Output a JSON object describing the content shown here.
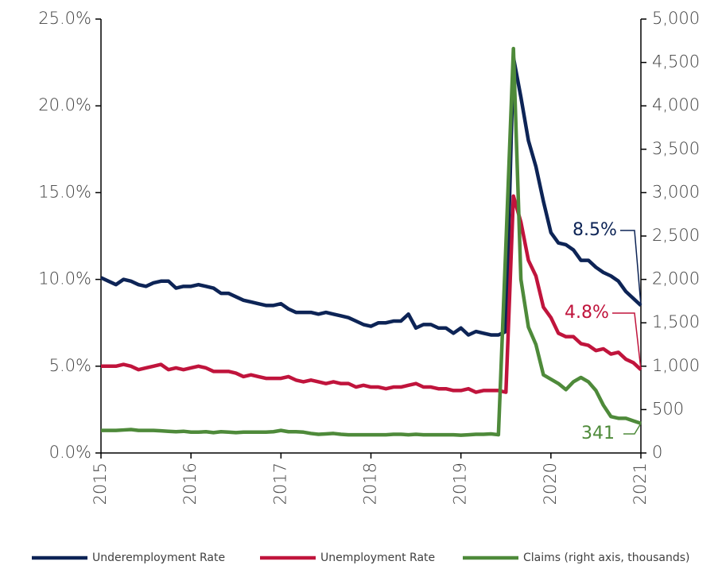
{
  "chart_data": {
    "type": "line",
    "categories": [
      "2015",
      null,
      null,
      null,
      null,
      null,
      null,
      null,
      null,
      null,
      null,
      null,
      "2016",
      null,
      null,
      null,
      null,
      null,
      null,
      null,
      null,
      null,
      null,
      null,
      "2017",
      null,
      null,
      null,
      null,
      null,
      null,
      null,
      null,
      null,
      null,
      null,
      "2018",
      null,
      null,
      null,
      null,
      null,
      null,
      null,
      null,
      null,
      null,
      null,
      "2019",
      null,
      null,
      null,
      null,
      null,
      null,
      null,
      null,
      null,
      null,
      null,
      "2020",
      null,
      null,
      null,
      null,
      null,
      null,
      null,
      null,
      null,
      null,
      null,
      "2021"
    ],
    "series": [
      {
        "name": "Underemployment Rate",
        "color": "#0d2456",
        "values": [
          10.1,
          9.9,
          9.7,
          10.0,
          9.9,
          9.7,
          9.6,
          9.8,
          9.9,
          9.9,
          9.5,
          9.6,
          9.6,
          9.7,
          9.6,
          9.5,
          9.2,
          9.2,
          9.0,
          8.8,
          8.7,
          8.6,
          8.5,
          8.5,
          8.6,
          8.3,
          8.1,
          8.1,
          8.1,
          8.0,
          8.1,
          8.0,
          7.9,
          7.8,
          7.6,
          7.4,
          7.3,
          7.5,
          7.5,
          7.6,
          7.6,
          8.0,
          7.2,
          7.4,
          7.4,
          7.2,
          7.2,
          6.9,
          7.2,
          6.8,
          7.0,
          6.9,
          6.8,
          6.8,
          7.0,
          22.8,
          20.5,
          18.0,
          16.5,
          14.5,
          12.7,
          12.1,
          12.0,
          11.7,
          11.1,
          11.1,
          10.7,
          10.4,
          10.2,
          9.9,
          9.3,
          8.9,
          8.5
        ]
      },
      {
        "name": "Unemployment Rate",
        "color": "#c0143c",
        "values": [
          5.0,
          5.0,
          5.0,
          5.1,
          5.0,
          4.8,
          4.9,
          5.0,
          5.1,
          4.8,
          4.9,
          4.8,
          4.9,
          5.0,
          4.9,
          4.7,
          4.7,
          4.7,
          4.6,
          4.4,
          4.5,
          4.4,
          4.3,
          4.3,
          4.3,
          4.4,
          4.2,
          4.1,
          4.2,
          4.1,
          4.0,
          4.1,
          4.0,
          4.0,
          3.8,
          3.9,
          3.8,
          3.8,
          3.7,
          3.8,
          3.8,
          3.9,
          4.0,
          3.8,
          3.8,
          3.7,
          3.7,
          3.6,
          3.6,
          3.7,
          3.5,
          3.6,
          3.6,
          3.6,
          3.5,
          14.8,
          13.3,
          11.1,
          10.2,
          8.4,
          7.8,
          6.9,
          6.7,
          6.7,
          6.3,
          6.2,
          5.9,
          6.0,
          5.7,
          5.8,
          5.4,
          5.2,
          4.8
        ]
      },
      {
        "name": "Claims (right axis, thousands)",
        "color": "#4e8a3a",
        "axis": "y2",
        "values": [
          260,
          260,
          260,
          265,
          270,
          260,
          260,
          260,
          255,
          250,
          245,
          250,
          240,
          240,
          245,
          235,
          245,
          240,
          235,
          240,
          240,
          240,
          240,
          245,
          260,
          245,
          245,
          240,
          225,
          215,
          220,
          225,
          215,
          210,
          210,
          210,
          210,
          210,
          210,
          215,
          215,
          210,
          215,
          210,
          210,
          210,
          210,
          210,
          205,
          210,
          215,
          215,
          220,
          210,
          2400,
          4660,
          2000,
          1450,
          1250,
          900,
          850,
          800,
          730,
          820,
          870,
          820,
          720,
          550,
          420,
          400,
          400,
          370,
          341
        ]
      }
    ],
    "annotations": [
      "8.5%",
      "4.8%",
      "341"
    ],
    "ylim": [
      0,
      25
    ],
    "yticks": [
      {
        "value": 0,
        "label": "0.0%"
      },
      {
        "value": 5,
        "label": "5.0%"
      },
      {
        "value": 10,
        "label": "10.0%"
      },
      {
        "value": 15,
        "label": "15.0%"
      },
      {
        "value": 20,
        "label": "20.0%"
      },
      {
        "value": 25,
        "label": "25.0%"
      }
    ],
    "y2lim": [
      0,
      5000
    ],
    "y2ticks": [
      0,
      500,
      {
        "value": 1000,
        "label": "1,000"
      },
      {
        "value": 1500,
        "label": "1,500"
      },
      {
        "value": 2000,
        "label": "2,000"
      },
      {
        "value": 2500,
        "label": "2,500"
      },
      {
        "value": 3000,
        "label": "3,000"
      },
      {
        "value": 3500,
        "label": "3,500"
      },
      {
        "value": 4000,
        "label": "4,000"
      },
      {
        "value": 4500,
        "label": "4,500"
      },
      {
        "value": 5000,
        "label": "5,000"
      }
    ],
    "grid": false,
    "legend": "bottom"
  }
}
